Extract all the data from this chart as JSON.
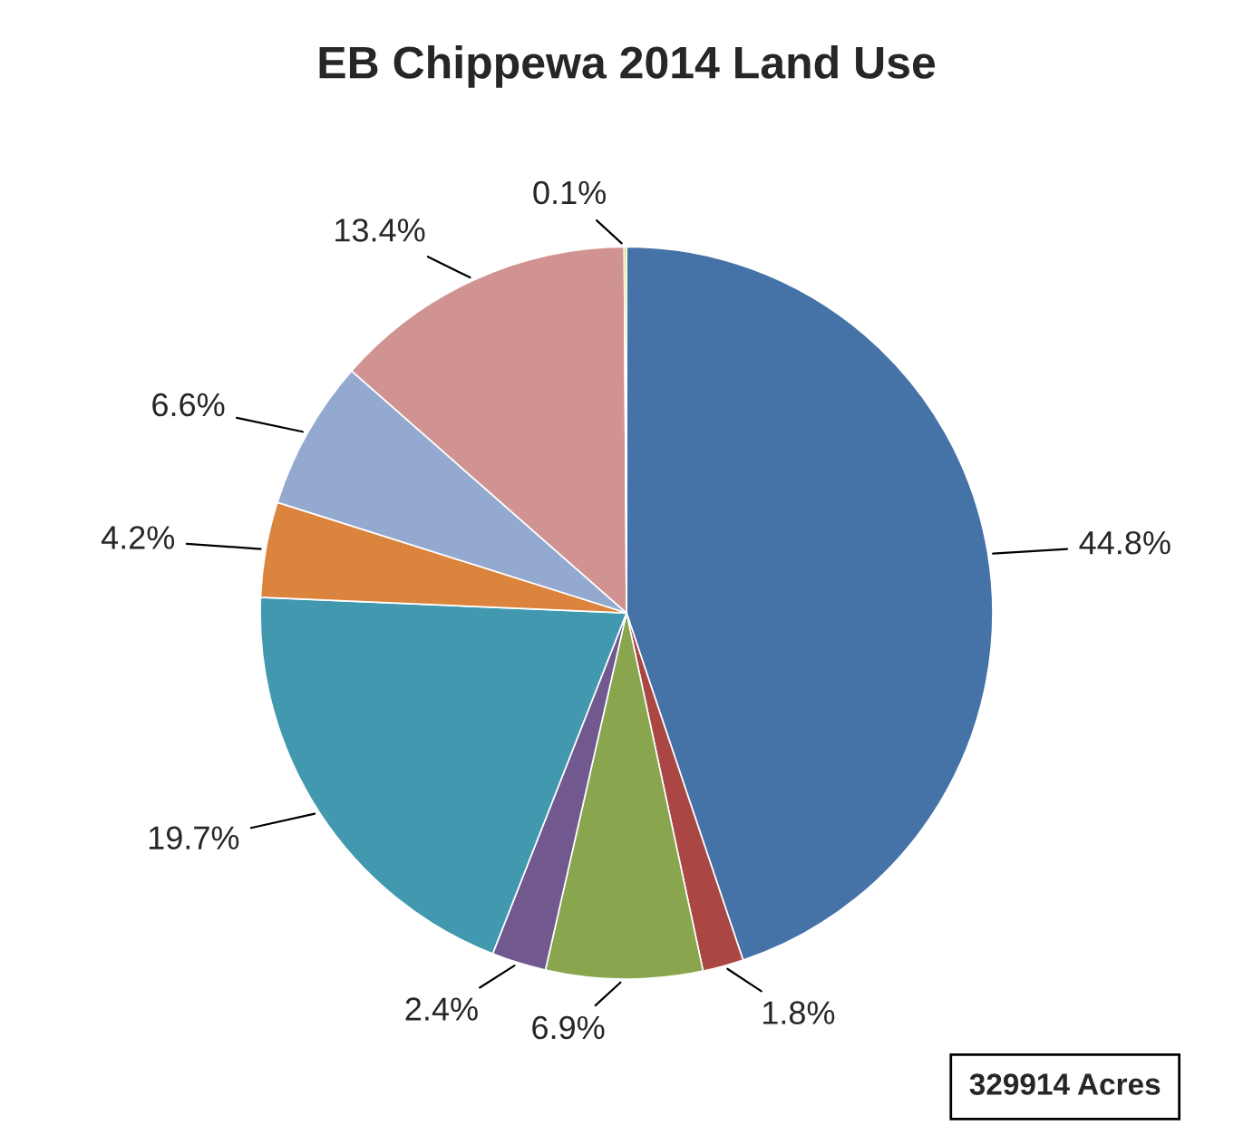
{
  "chart_data": {
    "type": "pie",
    "title": "EB Chippewa 2014 Land Use",
    "categories": [
      null,
      null,
      null,
      null,
      null,
      null,
      null,
      null,
      null
    ],
    "values": [
      44.8,
      1.8,
      6.9,
      2.4,
      19.7,
      4.2,
      6.6,
      13.4,
      0.1
    ],
    "value_labels": [
      "44.8%",
      "1.8%",
      "6.9%",
      "2.4%",
      "19.7%",
      "4.2%",
      "6.6%",
      "13.4%",
      "0.1%"
    ],
    "colors": [
      "#4572a7",
      "#aa4643",
      "#89a54e",
      "#71588f",
      "#4198af",
      "#db843d",
      "#93a9cf",
      "#d19392",
      "#b9cd00"
    ],
    "annotations": [
      "329914 Acres"
    ],
    "legend": false
  }
}
